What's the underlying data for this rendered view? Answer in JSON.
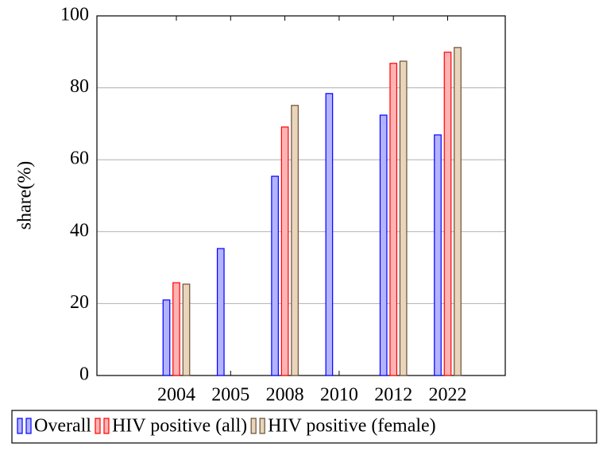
{
  "chart_data": {
    "type": "bar",
    "y_label": "share(%)",
    "categories": [
      "2004",
      "2005",
      "2008",
      "2010",
      "2012",
      "2022"
    ],
    "series": [
      {
        "name": "Overall",
        "color": "#0000ff",
        "fill": "#b3b3ff",
        "values": [
          21.0,
          35.3,
          55.4,
          78.4,
          72.4,
          66.9
        ]
      },
      {
        "name": "HIV positive (all)",
        "color": "#ff0000",
        "fill": "#ffb3b3",
        "values": [
          25.8,
          null,
          69.1,
          null,
          86.8,
          89.9
        ]
      },
      {
        "name": "HIV positive (female)",
        "color": "#6b4f35",
        "fill": "#e9d5bc",
        "values": [
          25.4,
          null,
          75.1,
          null,
          87.4,
          91.2
        ]
      }
    ],
    "ylim": [
      0,
      100
    ],
    "yticks": [
      0,
      20,
      40,
      60,
      80,
      100
    ],
    "grid": true,
    "legend": "bottom"
  }
}
